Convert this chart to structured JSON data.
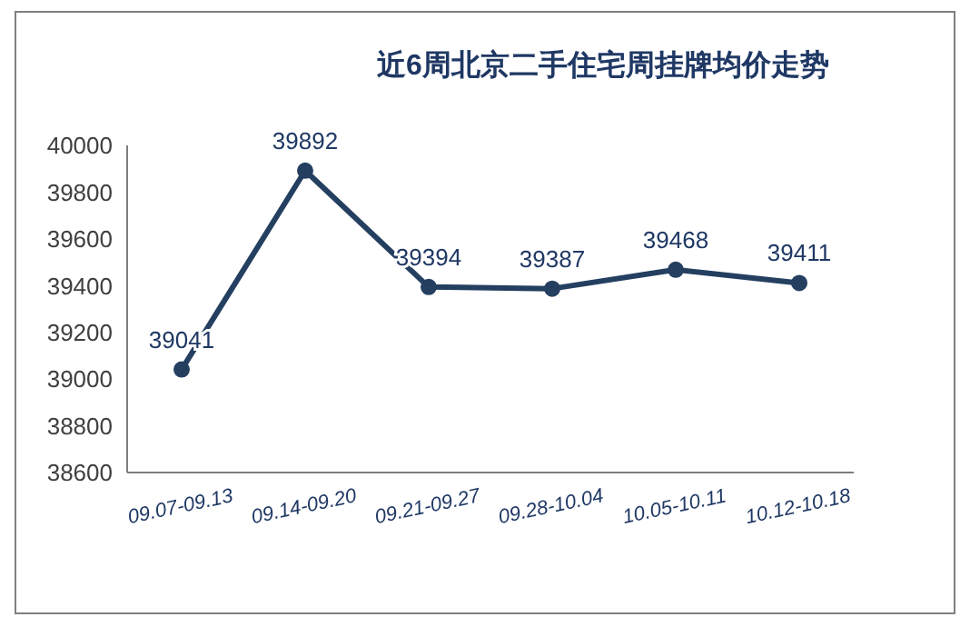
{
  "chart_data": {
    "type": "line",
    "title": "近6周北京二手住宅周挂牌均价走势",
    "categories": [
      "09.07-09.13",
      "09.14-09.20",
      "09.21-09.27",
      "09.28-10.04",
      "10.05-10.11",
      "10.12-10.18"
    ],
    "series": [
      {
        "color": "#243f60",
        "values": [
          39041,
          39892,
          39394,
          39387,
          39468,
          39411
        ]
      }
    ],
    "ylim": [
      38600,
      40000
    ],
    "yticks": [
      38600,
      38800,
      39000,
      39200,
      39400,
      39600,
      39800,
      40000
    ],
    "data_labels": true,
    "marker": "circle",
    "grid": false,
    "legend": false
  }
}
